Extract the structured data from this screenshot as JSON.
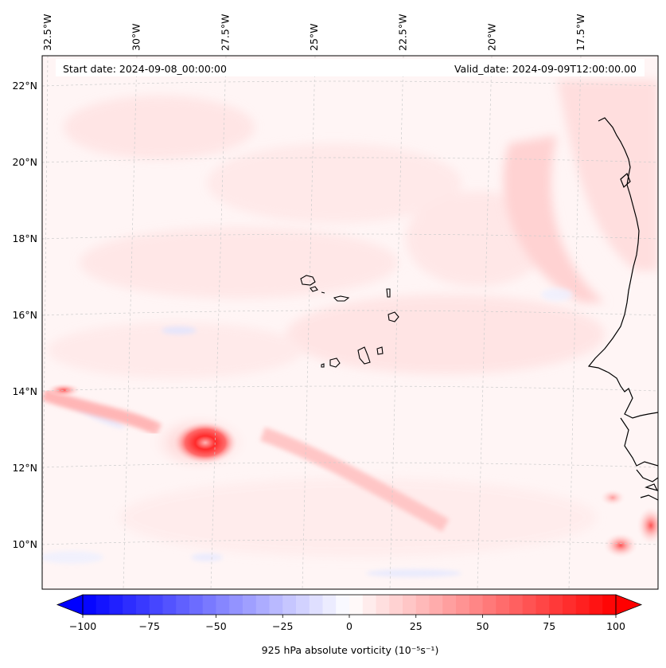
{
  "map": {
    "start_date_text": "Start date: 2024-09-08_00:00:00",
    "valid_date_text": "Valid_date: 2024-09-09T12:00:00.00",
    "lon_labels": [
      {
        "text": "32.5°W",
        "lon": -32.5
      },
      {
        "text": "30°W",
        "lon": -30
      },
      {
        "text": "27.5°W",
        "lon": -27.5
      },
      {
        "text": "25°W",
        "lon": -25
      },
      {
        "text": "22.5°W",
        "lon": -22.5
      },
      {
        "text": "20°W",
        "lon": -20
      },
      {
        "text": "17.5°W",
        "lon": -17.5
      }
    ],
    "lat_labels": [
      {
        "text": "22°N",
        "lat": 22
      },
      {
        "text": "20°N",
        "lat": 20
      },
      {
        "text": "18°N",
        "lat": 18
      },
      {
        "text": "16°N",
        "lat": 16
      },
      {
        "text": "14°N",
        "lat": 14
      },
      {
        "text": "12°N",
        "lat": 12
      },
      {
        "text": "10°N",
        "lat": 10
      }
    ]
  },
  "colorbar": {
    "min": -100,
    "max": 100,
    "tick_labels": [
      "−100",
      "−75",
      "−50",
      "−25",
      "0",
      "25",
      "50",
      "75",
      "100"
    ],
    "tick_values": [
      -100,
      -75,
      -50,
      -25,
      0,
      25,
      50,
      75,
      100
    ],
    "label": "925 hPa absolute vorticity (10⁻⁵s⁻¹)",
    "neg_color": "#0000ff",
    "pos_color": "#ff0000",
    "levels": 40
  }
}
